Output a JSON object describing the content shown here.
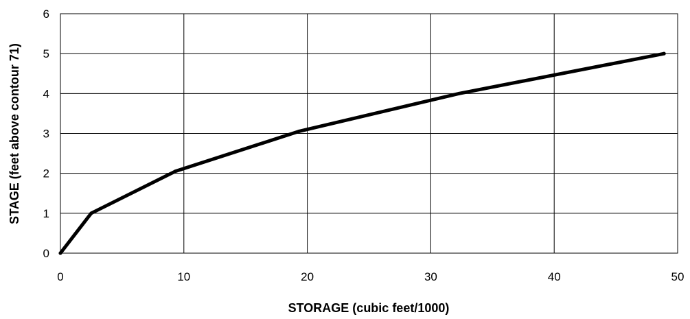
{
  "chart_data": {
    "type": "line",
    "xlabel": "STORAGE (cubic feet/1000)",
    "ylabel": "STAGE (feet above contour 71)",
    "xlim": [
      0,
      50
    ],
    "ylim": [
      0,
      6
    ],
    "x_ticks": [
      "0",
      "10",
      "20",
      "30",
      "40",
      "50"
    ],
    "y_ticks": [
      "0",
      "1",
      "2",
      "3",
      "4",
      "5",
      "6"
    ],
    "grid": true,
    "legend": "none",
    "line_color": "#000000",
    "series": [
      {
        "x": [
          0,
          2.5,
          9.3,
          19.3,
          32.3,
          48.9
        ],
        "y": [
          0,
          1,
          2.05,
          3.05,
          4.0,
          5.0
        ]
      }
    ]
  }
}
